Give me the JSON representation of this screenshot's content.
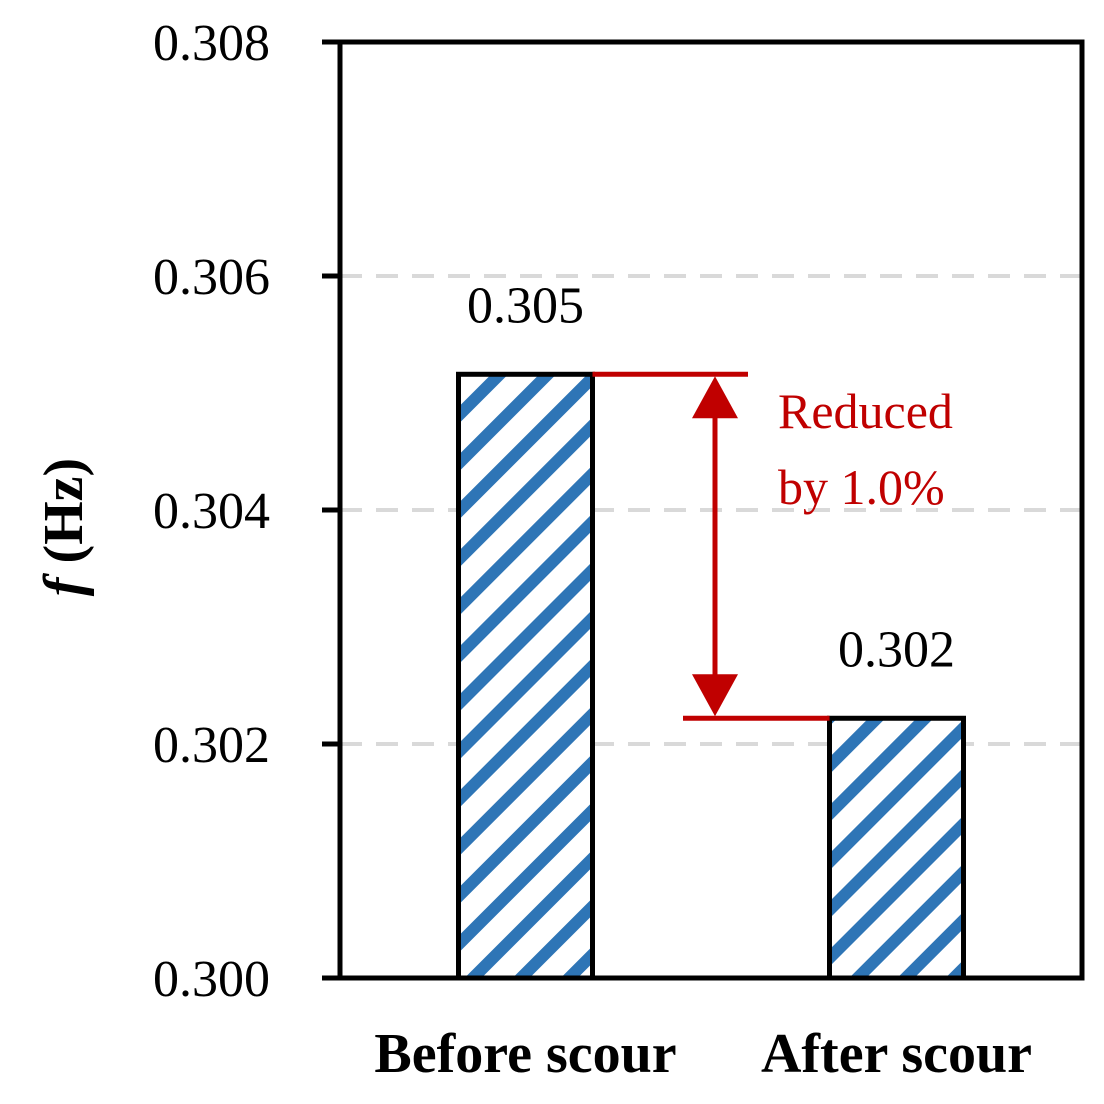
{
  "chart_data": {
    "type": "bar",
    "categories": [
      "Before scour",
      "After scour"
    ],
    "values": [
      0.30516,
      0.30222
    ],
    "data_labels": [
      "0.305",
      "0.302"
    ],
    "ylabel_symbol": "f",
    "ylabel_unit": " (Hz)",
    "ylim": [
      0.3,
      0.308
    ],
    "yticks": [
      "0.300",
      "0.302",
      "0.304",
      "0.306",
      "0.308"
    ],
    "grid": "horizontal dashed",
    "annotation": {
      "line1": "Reduced",
      "line2": "by 1.0%",
      "color": "#c00000"
    },
    "colors": {
      "hatch": "#2e75b6",
      "bar_edge": "#000000",
      "grid": "#d9d9d9"
    }
  }
}
